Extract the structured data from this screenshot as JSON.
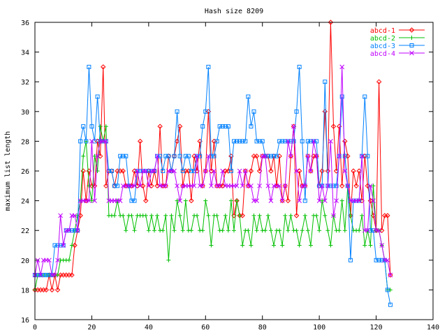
{
  "chart_data": {
    "type": "line",
    "title": "Hash size 8209",
    "xlabel": "",
    "ylabel": "maximum list length",
    "xlim": [
      0,
      140
    ],
    "ylim": [
      16,
      36
    ],
    "xticks": [
      0,
      20,
      40,
      60,
      80,
      100,
      120,
      140
    ],
    "yticks": [
      16,
      18,
      20,
      22,
      24,
      26,
      28,
      30,
      32,
      34,
      36
    ],
    "grid": false,
    "legend": "top-right",
    "series": [
      {
        "name": "abcd-1",
        "color": "#ff0000",
        "marker": "diamond",
        "x": [
          0,
          1,
          2,
          3,
          4,
          5,
          6,
          7,
          8,
          9,
          10,
          11,
          12,
          13,
          14,
          15,
          16,
          17,
          18,
          19,
          20,
          21,
          22,
          23,
          24,
          25,
          26,
          27,
          28,
          29,
          30,
          31,
          32,
          33,
          34,
          35,
          36,
          37,
          38,
          39,
          40,
          41,
          42,
          43,
          44,
          45,
          46,
          47,
          48,
          49,
          50,
          51,
          52,
          53,
          54,
          55,
          56,
          57,
          58,
          59,
          60,
          61,
          62,
          63,
          64,
          65,
          66,
          67,
          68,
          69,
          70,
          71,
          72,
          73,
          74,
          75,
          76,
          77,
          78,
          79,
          80,
          81,
          82,
          83,
          84,
          85,
          86,
          87,
          88,
          89,
          90,
          91,
          92,
          93,
          94,
          95,
          96,
          97,
          98,
          99,
          100,
          101,
          102,
          103,
          104,
          105,
          106,
          107,
          108,
          109,
          110,
          111,
          112,
          113,
          114,
          115,
          116,
          117,
          118,
          119,
          120,
          121,
          122,
          123,
          124,
          125
        ],
        "y": [
          18,
          18,
          18,
          18,
          18,
          19,
          18,
          19,
          18,
          19,
          19,
          19,
          19,
          19,
          21,
          22,
          23,
          26,
          24,
          26,
          25,
          25,
          28,
          27,
          33,
          25,
          26,
          26,
          25,
          26,
          26,
          26,
          25,
          25,
          25,
          26,
          25,
          28,
          25,
          24,
          26,
          25,
          26,
          25,
          29,
          25,
          25,
          27,
          26,
          27,
          28,
          29,
          25,
          26,
          26,
          24,
          27,
          26,
          28,
          25,
          26,
          30,
          26,
          28,
          25,
          25,
          25,
          26,
          26,
          27,
          23,
          24,
          23,
          23,
          26,
          25,
          26,
          27,
          27,
          26,
          27,
          27,
          27,
          26,
          27,
          25,
          27,
          24,
          25,
          24,
          27,
          29,
          23,
          26,
          25,
          25,
          27,
          26,
          27,
          27,
          25,
          26,
          30,
          26,
          36,
          29,
          26,
          29,
          25,
          28,
          27,
          23,
          26,
          25,
          26,
          24,
          27,
          25,
          24,
          23,
          22,
          32,
          22,
          23,
          23,
          19
        ],
        "label_y": 26.0
      },
      {
        "name": "abcd-2",
        "color": "#00c000",
        "marker": "plus",
        "x": [
          0,
          1,
          2,
          3,
          4,
          5,
          6,
          7,
          8,
          9,
          10,
          11,
          12,
          13,
          14,
          15,
          16,
          17,
          18,
          19,
          20,
          21,
          22,
          23,
          24,
          25,
          26,
          27,
          28,
          29,
          30,
          31,
          32,
          33,
          34,
          35,
          36,
          37,
          38,
          39,
          40,
          41,
          42,
          43,
          44,
          45,
          46,
          47,
          48,
          49,
          50,
          51,
          52,
          53,
          54,
          55,
          56,
          57,
          58,
          59,
          60,
          61,
          62,
          63,
          64,
          65,
          66,
          67,
          68,
          69,
          70,
          71,
          72,
          73,
          74,
          75,
          76,
          77,
          78,
          79,
          80,
          81,
          82,
          83,
          84,
          85,
          86,
          87,
          88,
          89,
          90,
          91,
          92,
          93,
          94,
          95,
          96,
          97,
          98,
          99,
          100,
          101,
          102,
          103,
          104,
          105,
          106,
          107,
          108,
          109,
          110,
          111,
          112,
          113,
          114,
          115,
          116,
          117,
          118,
          119,
          120,
          121,
          122,
          123,
          124,
          125
        ],
        "y": [
          18,
          19,
          19,
          19,
          19,
          19,
          19,
          19,
          19,
          20,
          20,
          20,
          20,
          21,
          22,
          23,
          24,
          27,
          28,
          25,
          24,
          27,
          26,
          29,
          28,
          29,
          23,
          23,
          23,
          24,
          23,
          23,
          22,
          23,
          23,
          22,
          23,
          23,
          23,
          23,
          22,
          23,
          22,
          23,
          22,
          22,
          23,
          20,
          23,
          22,
          24,
          23,
          22,
          24,
          22,
          22,
          23,
          23,
          22,
          22,
          24,
          23,
          21,
          23,
          23,
          22,
          22,
          23,
          22,
          24,
          22,
          24,
          23,
          21,
          22,
          22,
          21,
          23,
          22,
          23,
          22,
          22,
          23,
          22,
          21,
          22,
          22,
          21,
          23,
          22,
          23,
          22,
          22,
          21,
          22,
          23,
          22,
          21,
          23,
          23,
          22,
          24,
          23,
          22,
          21,
          23,
          22,
          22,
          24,
          22,
          25,
          23,
          22,
          22,
          22,
          23,
          21,
          22,
          21,
          25,
          22,
          22,
          21,
          20,
          18,
          18
        ],
        "label_y": 25.0
      },
      {
        "name": "abcd-3",
        "color": "#0080ff",
        "marker": "square",
        "x": [
          0,
          1,
          2,
          3,
          4,
          5,
          6,
          7,
          8,
          9,
          10,
          11,
          12,
          13,
          14,
          15,
          16,
          17,
          18,
          19,
          20,
          21,
          22,
          23,
          24,
          25,
          26,
          27,
          28,
          29,
          30,
          31,
          32,
          33,
          34,
          35,
          36,
          37,
          38,
          39,
          40,
          41,
          42,
          43,
          44,
          45,
          46,
          47,
          48,
          49,
          50,
          51,
          52,
          53,
          54,
          55,
          56,
          57,
          58,
          59,
          60,
          61,
          62,
          63,
          64,
          65,
          66,
          67,
          68,
          69,
          70,
          71,
          72,
          73,
          74,
          75,
          76,
          77,
          78,
          79,
          80,
          81,
          82,
          83,
          84,
          85,
          86,
          87,
          88,
          89,
          90,
          91,
          92,
          93,
          94,
          95,
          96,
          97,
          98,
          99,
          100,
          101,
          102,
          103,
          104,
          105,
          106,
          107,
          108,
          109,
          110,
          111,
          112,
          113,
          114,
          115,
          116,
          117,
          118,
          119,
          120,
          121,
          122,
          123,
          124,
          125
        ],
        "y": [
          19,
          19,
          19,
          19,
          19,
          19,
          19,
          21,
          21,
          21,
          21,
          22,
          22,
          22,
          22,
          22,
          28,
          29,
          28,
          33,
          29,
          28,
          31,
          28,
          28,
          28,
          26,
          26,
          25,
          25,
          27,
          27,
          27,
          25,
          24,
          24,
          26,
          26,
          26,
          26,
          26,
          26,
          26,
          27,
          27,
          26,
          27,
          27,
          26,
          27,
          30,
          27,
          26,
          27,
          27,
          26,
          26,
          27,
          27,
          29,
          30,
          33,
          27,
          27,
          28,
          29,
          29,
          29,
          29,
          26,
          28,
          28,
          28,
          28,
          28,
          31,
          29,
          30,
          28,
          28,
          28,
          27,
          27,
          27,
          27,
          27,
          28,
          28,
          28,
          28,
          28,
          28,
          30,
          33,
          28,
          24,
          28,
          28,
          28,
          28,
          25,
          25,
          32,
          25,
          25,
          25,
          25,
          27,
          31,
          27,
          25,
          20,
          24,
          24,
          24,
          27,
          31,
          27,
          22,
          22,
          20,
          20,
          20,
          20,
          18,
          17
        ],
        "label_y": 27.0
      },
      {
        "name": "abcd-4",
        "color": "#c000ff",
        "marker": "cross",
        "x": [
          0,
          1,
          2,
          3,
          4,
          5,
          6,
          7,
          8,
          9,
          10,
          11,
          12,
          13,
          14,
          15,
          16,
          17,
          18,
          19,
          20,
          21,
          22,
          23,
          24,
          25,
          26,
          27,
          28,
          29,
          30,
          31,
          32,
          33,
          34,
          35,
          36,
          37,
          38,
          39,
          40,
          41,
          42,
          43,
          44,
          45,
          46,
          47,
          48,
          49,
          50,
          51,
          52,
          53,
          54,
          55,
          56,
          57,
          58,
          59,
          60,
          61,
          62,
          63,
          64,
          65,
          66,
          67,
          68,
          69,
          70,
          71,
          72,
          73,
          74,
          75,
          76,
          77,
          78,
          79,
          80,
          81,
          82,
          83,
          84,
          85,
          86,
          87,
          88,
          89,
          90,
          91,
          92,
          93,
          94,
          95,
          96,
          97,
          98,
          99,
          100,
          101,
          102,
          103,
          104,
          105,
          106,
          107,
          108,
          109,
          110,
          111,
          112,
          113,
          114,
          115,
          116,
          117,
          118,
          119,
          120,
          121,
          122,
          123,
          124,
          125
        ],
        "y": [
          19,
          20,
          19,
          20,
          20,
          20,
          19,
          19,
          20,
          23,
          21,
          22,
          22,
          23,
          23,
          22,
          24,
          24,
          24,
          24,
          28,
          24,
          27,
          28,
          28,
          28,
          24,
          24,
          24,
          24,
          24,
          25,
          25,
          25,
          25,
          25,
          26,
          25,
          26,
          26,
          25,
          26,
          26,
          27,
          25,
          25,
          25,
          26,
          26,
          26,
          25,
          24,
          25,
          25,
          25,
          25,
          25,
          27,
          25,
          25,
          26,
          27,
          25,
          26,
          25,
          25,
          26,
          25,
          25,
          25,
          25,
          25,
          26,
          25,
          26,
          25,
          25,
          24,
          24,
          25,
          27,
          27,
          25,
          24,
          25,
          25,
          25,
          24,
          25,
          28,
          27,
          29,
          26,
          24,
          25,
          25,
          27,
          26,
          28,
          27,
          24,
          25,
          24,
          25,
          28,
          23,
          24,
          27,
          33,
          26,
          25,
          24,
          24,
          24,
          24,
          27,
          22,
          22,
          25,
          24,
          22,
          22,
          21,
          20,
          20,
          19
        ],
        "label_y": 26.0
      }
    ]
  }
}
